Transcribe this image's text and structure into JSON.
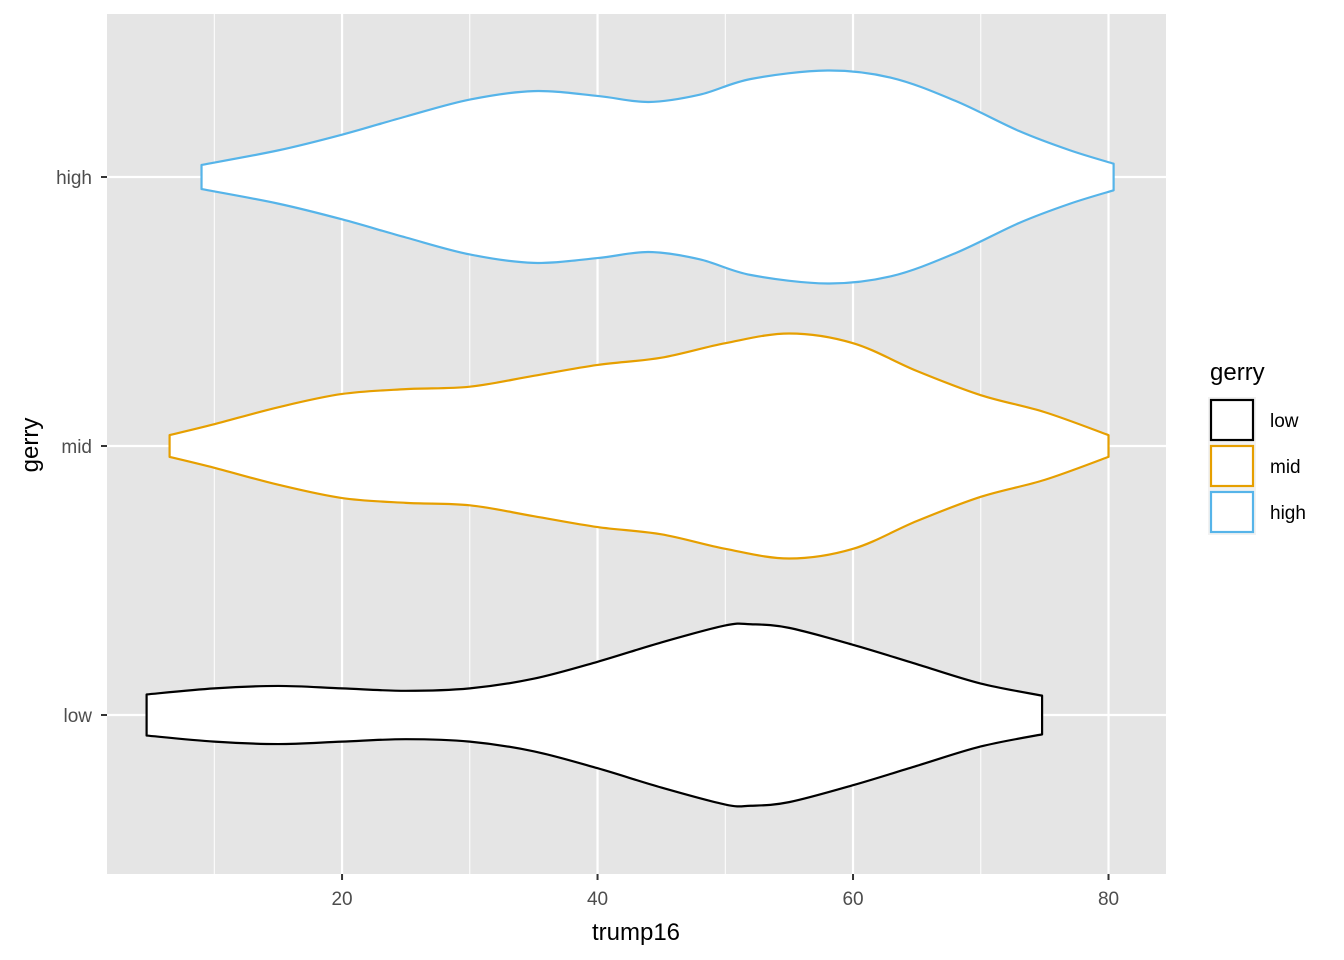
{
  "chart_data": {
    "type": "violin",
    "orientation": "horizontal",
    "xlabel": "trump16",
    "ylabel": "gerry",
    "xlim": [
      1.6,
      84.5
    ],
    "x_ticks": [
      20,
      40,
      60,
      80
    ],
    "x_tick_labels": [
      "20",
      "40",
      "60",
      "80"
    ],
    "categories": [
      "low",
      "mid",
      "high"
    ],
    "grid": true,
    "background": "#e5e5e5",
    "legend": {
      "title": "gerry",
      "placement": "right",
      "items": [
        "low",
        "mid",
        "high"
      ]
    },
    "series": [
      {
        "name": "low",
        "color": "#000000",
        "range": [
          4.7,
          74.8
        ],
        "density_profile": [
          [
            4.7,
            0.17
          ],
          [
            10.0,
            0.22
          ],
          [
            15.0,
            0.24
          ],
          [
            20.0,
            0.22
          ],
          [
            25.0,
            0.2
          ],
          [
            30.0,
            0.22
          ],
          [
            35.0,
            0.3
          ],
          [
            40.0,
            0.44
          ],
          [
            45.0,
            0.6
          ],
          [
            50.0,
            0.74
          ],
          [
            52.0,
            0.75
          ],
          [
            55.0,
            0.72
          ],
          [
            60.0,
            0.58
          ],
          [
            65.0,
            0.42
          ],
          [
            70.0,
            0.26
          ],
          [
            74.8,
            0.16
          ]
        ]
      },
      {
        "name": "mid",
        "color": "#e69f00",
        "range": [
          6.5,
          80.0
        ],
        "density_profile": [
          [
            6.5,
            0.09
          ],
          [
            10.0,
            0.18
          ],
          [
            15.0,
            0.32
          ],
          [
            20.0,
            0.43
          ],
          [
            25.0,
            0.47
          ],
          [
            30.0,
            0.49
          ],
          [
            35.0,
            0.58
          ],
          [
            40.0,
            0.67
          ],
          [
            45.0,
            0.73
          ],
          [
            50.0,
            0.85
          ],
          [
            55.0,
            0.93
          ],
          [
            60.0,
            0.85
          ],
          [
            65.0,
            0.62
          ],
          [
            70.0,
            0.42
          ],
          [
            75.0,
            0.28
          ],
          [
            80.0,
            0.09
          ]
        ]
      },
      {
        "name": "high",
        "color": "#56b4e9",
        "range": [
          9.0,
          80.4
        ],
        "density_profile": [
          [
            9.0,
            0.1
          ],
          [
            15.0,
            0.22
          ],
          [
            20.0,
            0.35
          ],
          [
            25.0,
            0.5
          ],
          [
            30.0,
            0.64
          ],
          [
            35.0,
            0.71
          ],
          [
            40.0,
            0.67
          ],
          [
            44.0,
            0.62
          ],
          [
            48.0,
            0.68
          ],
          [
            52.0,
            0.81
          ],
          [
            58.0,
            0.88
          ],
          [
            63.0,
            0.82
          ],
          [
            68.0,
            0.63
          ],
          [
            73.0,
            0.38
          ],
          [
            77.0,
            0.22
          ],
          [
            80.4,
            0.11
          ]
        ]
      }
    ]
  }
}
